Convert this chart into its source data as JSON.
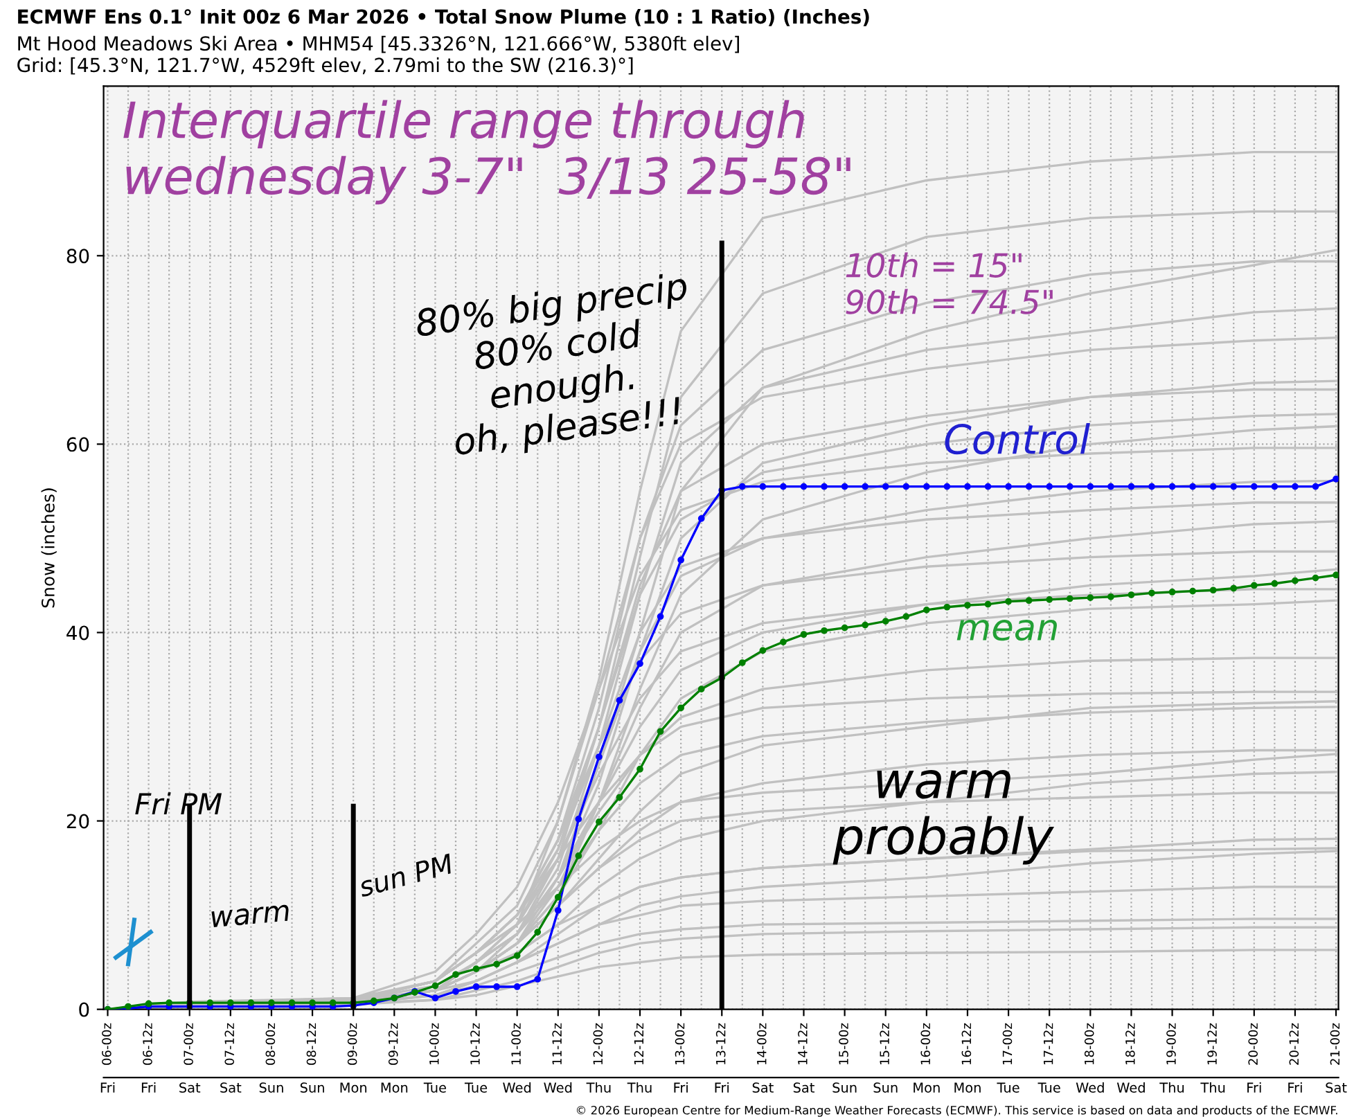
{
  "chart_data": {
    "type": "line",
    "title": "ECMWF Ens 0.1° Init 00z 6 Mar 2026 • Total Snow Plume (10 : 1 Ratio) (Inches)",
    "subtitle": "Mt Hood Meadows Ski Area • MHM54 [45.3326°N, 121.666°W, 5380ft elev]\nGrid: [45.3°N, 121.7°W, 4529ft elev, 2.79mi to the SW (216.3)°]",
    "ylabel": "Snow (inches)",
    "categories": [
      "06-00z",
      null,
      "06-12z",
      null,
      "07-00z",
      null,
      "07-12z",
      null,
      "08-00z",
      null,
      "08-12z",
      null,
      "09-00z",
      null,
      "09-12z",
      null,
      "10-00z",
      null,
      "10-12z",
      null,
      "11-00z",
      null,
      "11-12z",
      null,
      "12-00z",
      null,
      "12-12z",
      null,
      "13-00z",
      null,
      "13-12z",
      null,
      "14-00z",
      null,
      "14-12z",
      null,
      "15-00z",
      null,
      "15-12z",
      null,
      "16-00z",
      null,
      "16-12z",
      null,
      "17-00z",
      null,
      "17-12z",
      null,
      "18-00z",
      null,
      "18-12z",
      null,
      "19-00z",
      null,
      "19-12z",
      null,
      "20-00z",
      null,
      "20-12z",
      null,
      "21-00z"
    ],
    "ylim": [
      0,
      98
    ],
    "yticks": [
      0,
      20,
      40,
      60,
      80
    ],
    "grid": true,
    "marker": "circle",
    "line_style": "solid",
    "ref_lines": [
      {
        "axis": "x",
        "value": "07-00z",
        "color": "#000000"
      },
      {
        "axis": "x",
        "value": "09-00z",
        "color": "#000000"
      },
      {
        "axis": "x",
        "value": "13-12z",
        "color": "#000000"
      }
    ],
    "annotations": [
      "Interquartile range through\nwednesday 3-7\"  3/13 25-58\"",
      "10th = 15\"\n90th = 74.5\"",
      "80% big precip\n80% cold\nenough.\noh, please!!!",
      "Control",
      "mean",
      "warm\nprobably",
      "Fri PM",
      "warm",
      "sun PM",
      "© 2026 European Centre for Medium-Range Weather Forecasts (ECMWF). This service is based on data and products of the ECMWF.",
      "Fri",
      "Fri",
      "Sat",
      "Sat",
      "Sun",
      "Sun",
      "Mon",
      "Mon",
      "Tue",
      "Tue",
      "Wed",
      "Wed",
      "Thu",
      "Thu",
      "Fri",
      "Fri",
      "Sat",
      "Sat",
      "Sun",
      "Sun",
      "Mon",
      "Mon",
      "Tue",
      "Tue",
      "Wed",
      "Wed",
      "Thu",
      "Thu",
      "Fri",
      "Fri",
      "Sat"
    ],
    "series": [
      {
        "color": "#c0c0c0",
        "marker": "none",
        "x": [
          "06-00z",
          "07-00z",
          "09-00z",
          "10-00z",
          "10-12z",
          "11-00z",
          "11-12z",
          "12-00z",
          "12-12z",
          "13-00z",
          "14-00z",
          "16-00z",
          "18-00z",
          "20-00z",
          "21-00z"
        ],
        "values": [
          0,
          0.8,
          1.2,
          3,
          6,
          9,
          20,
          35,
          55,
          72,
          84,
          88,
          90,
          91,
          91
        ]
      },
      {
        "color": "#c0c0c0",
        "marker": "none",
        "x": [
          "06-00z",
          "07-00z",
          "09-00z",
          "10-00z",
          "10-12z",
          "11-00z",
          "11-12z",
          "12-00z",
          "12-12z",
          "13-00z",
          "14-00z",
          "16-00z",
          "18-00z",
          "20-00z",
          "21-00z"
        ],
        "values": [
          0,
          0.6,
          1,
          2.5,
          5,
          8,
          16,
          30,
          48,
          65,
          76,
          82,
          84,
          84.7,
          84.7
        ]
      },
      {
        "color": "#c0c0c0",
        "marker": "none",
        "x": [
          "06-00z",
          "07-00z",
          "09-00z",
          "10-00z",
          "10-12z",
          "11-00z",
          "11-12z",
          "12-00z",
          "12-12z",
          "13-00z",
          "14-00z",
          "16-00z",
          "18-00z",
          "20-00z",
          "21-00z"
        ],
        "values": [
          0,
          0.5,
          0.8,
          2,
          4,
          7,
          14,
          26,
          40,
          55,
          66,
          72,
          76,
          79,
          80.6
        ]
      },
      {
        "color": "#c0c0c0",
        "marker": "none",
        "x": [
          "06-00z",
          "07-00z",
          "09-00z",
          "10-00z",
          "10-12z",
          "11-00z",
          "11-12z",
          "12-00z",
          "12-12z",
          "13-00z",
          "14-00z",
          "16-00z",
          "18-00z",
          "20-00z",
          "21-00z"
        ],
        "values": [
          0,
          0.7,
          1,
          3,
          6,
          10,
          18,
          32,
          50,
          62,
          70,
          75,
          78,
          79.4,
          79.4
        ]
      },
      {
        "color": "#c0c0c0",
        "marker": "none",
        "x": [
          "06-00z",
          "07-00z",
          "09-00z",
          "10-00z",
          "10-12z",
          "11-00z",
          "11-12z",
          "12-00z",
          "12-12z",
          "13-00z",
          "14-00z",
          "16-00z",
          "18-00z",
          "20-00z",
          "21-00z"
        ],
        "values": [
          0,
          0.5,
          0.9,
          2,
          5,
          8,
          15,
          28,
          44,
          58,
          66,
          70,
          72,
          74,
          74.4
        ]
      },
      {
        "color": "#c0c0c0",
        "marker": "none",
        "x": [
          "06-00z",
          "07-00z",
          "09-00z",
          "10-00z",
          "10-12z",
          "11-00z",
          "11-12z",
          "12-00z",
          "12-12z",
          "13-00z",
          "14-00z",
          "16-00z",
          "18-00z",
          "20-00z",
          "21-00z"
        ],
        "values": [
          0,
          0.6,
          1,
          3,
          7,
          11,
          20,
          34,
          50,
          60,
          65,
          68,
          70,
          71,
          71.3
        ]
      },
      {
        "color": "#c0c0c0",
        "marker": "none",
        "x": [
          "06-00z",
          "07-00z",
          "09-00z",
          "10-00z",
          "10-12z",
          "11-00z",
          "11-12z",
          "12-00z",
          "12-12z",
          "13-00z",
          "14-00z",
          "16-00z",
          "18-00z",
          "20-00z",
          "21-00z"
        ],
        "values": [
          0,
          0.5,
          0.8,
          2,
          4,
          8,
          14,
          24,
          38,
          50,
          58,
          62,
          65,
          66.5,
          66.7
        ]
      },
      {
        "color": "#c0c0c0",
        "marker": "none",
        "x": [
          "06-00z",
          "07-00z",
          "09-00z",
          "10-00z",
          "10-12z",
          "11-00z",
          "11-12z",
          "12-00z",
          "12-12z",
          "13-00z",
          "14-00z",
          "16-00z",
          "18-00z",
          "20-00z",
          "21-00z"
        ],
        "values": [
          0,
          0.4,
          0.7,
          2,
          5,
          9,
          17,
          30,
          45,
          55,
          60,
          63,
          65,
          65.8,
          65.8
        ]
      },
      {
        "color": "#c0c0c0",
        "marker": "none",
        "x": [
          "06-00z",
          "07-00z",
          "09-00z",
          "10-00z",
          "10-12z",
          "11-00z",
          "11-12z",
          "12-00z",
          "12-12z",
          "13-00z",
          "14-00z",
          "16-00z",
          "18-00z",
          "20-00z",
          "21-00z"
        ],
        "values": [
          0,
          0.6,
          1,
          3,
          6,
          10,
          18,
          30,
          44,
          52,
          57,
          60,
          62,
          63,
          63.2
        ]
      },
      {
        "color": "#c0c0c0",
        "marker": "none",
        "x": [
          "06-00z",
          "07-00z",
          "09-00z",
          "10-00z",
          "10-12z",
          "11-00z",
          "11-12z",
          "12-00z",
          "12-12z",
          "13-00z",
          "14-00z",
          "16-00z",
          "18-00z",
          "20-00z",
          "21-00z"
        ],
        "values": [
          0,
          0.5,
          0.9,
          2,
          4,
          7,
          12,
          22,
          34,
          44,
          52,
          57,
          60,
          61.5,
          61.9
        ]
      },
      {
        "color": "#c0c0c0",
        "marker": "none",
        "x": [
          "06-00z",
          "07-00z",
          "09-00z",
          "10-00z",
          "10-12z",
          "11-00z",
          "11-12z",
          "12-00z",
          "12-12z",
          "13-00z",
          "14-00z",
          "16-00z",
          "18-00z",
          "20-00z",
          "21-00z"
        ],
        "values": [
          0,
          0.7,
          1.2,
          4,
          8,
          13,
          22,
          34,
          46,
          53,
          56,
          58,
          59,
          59.6,
          59.6
        ]
      },
      {
        "color": "#c0c0c0",
        "marker": "none",
        "x": [
          "06-00z",
          "07-00z",
          "09-00z",
          "10-00z",
          "10-12z",
          "11-00z",
          "11-12z",
          "12-00z",
          "12-12z",
          "13-00z",
          "14-00z",
          "16-00z",
          "18-00z",
          "20-00z",
          "21-00z"
        ],
        "values": [
          0,
          0.5,
          0.8,
          2,
          5,
          9,
          16,
          26,
          38,
          46,
          50,
          53,
          55,
          56,
          56.1
        ]
      },
      {
        "color": "#c0c0c0",
        "marker": "none",
        "x": [
          "06-00z",
          "07-00z",
          "09-00z",
          "10-00z",
          "10-12z",
          "11-00z",
          "11-12z",
          "12-00z",
          "12-12z",
          "13-00z",
          "14-00z",
          "16-00z",
          "18-00z",
          "20-00z",
          "21-00z"
        ],
        "values": [
          0,
          0.6,
          1,
          3,
          6,
          10,
          17,
          28,
          40,
          47,
          50,
          52,
          53,
          53.8,
          53.8
        ]
      },
      {
        "color": "#c0c0c0",
        "marker": "none",
        "x": [
          "06-00z",
          "07-00z",
          "09-00z",
          "10-00z",
          "10-12z",
          "11-00z",
          "11-12z",
          "12-00z",
          "12-12z",
          "13-00z",
          "14-00z",
          "16-00z",
          "18-00z",
          "20-00z",
          "21-00z"
        ],
        "values": [
          0,
          0.4,
          0.7,
          2,
          4,
          7,
          13,
          22,
          32,
          40,
          45,
          48,
          50,
          51.5,
          51.8
        ]
      },
      {
        "color": "#c0c0c0",
        "marker": "none",
        "x": [
          "06-00z",
          "07-00z",
          "09-00z",
          "10-00z",
          "10-12z",
          "11-00z",
          "11-12z",
          "12-00z",
          "12-12z",
          "13-00z",
          "14-00z",
          "16-00z",
          "18-00z",
          "20-00z",
          "21-00z"
        ],
        "values": [
          0,
          0.5,
          0.9,
          3,
          6,
          10,
          18,
          28,
          37,
          42,
          45,
          47,
          48,
          48.6,
          48.6
        ]
      },
      {
        "color": "#c0c0c0",
        "marker": "none",
        "x": [
          "06-00z",
          "07-00z",
          "09-00z",
          "10-00z",
          "10-12z",
          "11-00z",
          "11-12z",
          "12-00z",
          "12-12z",
          "13-00z",
          "14-00z",
          "16-00z",
          "18-00z",
          "20-00z",
          "21-00z"
        ],
        "values": [
          0,
          0.6,
          1,
          2,
          5,
          8,
          14,
          22,
          30,
          36,
          40,
          43,
          45,
          46,
          46.7
        ]
      },
      {
        "color": "#c0c0c0",
        "marker": "none",
        "x": [
          "06-00z",
          "07-00z",
          "09-00z",
          "10-00z",
          "10-12z",
          "11-00z",
          "11-12z",
          "12-00z",
          "12-12z",
          "13-00z",
          "14-00z",
          "16-00z",
          "18-00z",
          "20-00z",
          "21-00z"
        ],
        "values": [
          0,
          0.5,
          0.8,
          2,
          5,
          9,
          16,
          25,
          33,
          38,
          41,
          43,
          44,
          44.6,
          44.6
        ]
      },
      {
        "color": "#c0c0c0",
        "marker": "none",
        "x": [
          "06-00z",
          "07-00z",
          "09-00z",
          "10-00z",
          "10-12z",
          "11-00z",
          "11-12z",
          "12-00z",
          "12-12z",
          "13-00z",
          "14-00z",
          "16-00z",
          "18-00z",
          "20-00z",
          "21-00z"
        ],
        "values": [
          0,
          0.4,
          0.7,
          2,
          4,
          7,
          12,
          19,
          27,
          33,
          38,
          41,
          42.5,
          43,
          43.4
        ]
      },
      {
        "color": "#c0c0c0",
        "marker": "none",
        "x": [
          "06-00z",
          "07-00z",
          "09-00z",
          "10-00z",
          "10-12z",
          "11-00z",
          "11-12z",
          "12-00z",
          "12-12z",
          "13-00z",
          "14-00z",
          "16-00z",
          "18-00z",
          "20-00z",
          "21-00z"
        ],
        "values": [
          0,
          0.5,
          0.9,
          2,
          5,
          8,
          14,
          21,
          27,
          31,
          34,
          36,
          37,
          37.3,
          37.3
        ]
      },
      {
        "color": "#c0c0c0",
        "marker": "none",
        "x": [
          "06-00z",
          "07-00z",
          "09-00z",
          "10-00z",
          "10-12z",
          "11-00z",
          "11-12z",
          "12-00z",
          "12-12z",
          "13-00z",
          "14-00z",
          "16-00z",
          "18-00z",
          "20-00z",
          "21-00z"
        ],
        "values": [
          0,
          0.6,
          1,
          3,
          6,
          10,
          16,
          22,
          27,
          30,
          32,
          33,
          33.5,
          33.7,
          33.7
        ]
      },
      {
        "color": "#c0c0c0",
        "marker": "none",
        "x": [
          "06-00z",
          "07-00z",
          "09-00z",
          "10-00z",
          "10-12z",
          "11-00z",
          "11-12z",
          "12-00z",
          "12-12z",
          "13-00z",
          "14-00z",
          "16-00z",
          "18-00z",
          "20-00z",
          "21-00z"
        ],
        "values": [
          0,
          0.4,
          0.8,
          2,
          4,
          7,
          11,
          16,
          21,
          25,
          28,
          30,
          32,
          32.5,
          32.7
        ]
      },
      {
        "color": "#c0c0c0",
        "marker": "none",
        "x": [
          "06-00z",
          "07-00z",
          "09-00z",
          "10-00z",
          "10-12z",
          "11-00z",
          "11-12z",
          "12-00z",
          "12-12z",
          "13-00z",
          "14-00z",
          "16-00z",
          "18-00z",
          "20-00z",
          "21-00z"
        ],
        "values": [
          0,
          0.5,
          0.9,
          2,
          5,
          8,
          13,
          19,
          24,
          27,
          29,
          30.5,
          31.5,
          32,
          32.1
        ]
      },
      {
        "color": "#c0c0c0",
        "marker": "none",
        "x": [
          "06-00z",
          "07-00z",
          "09-00z",
          "10-00z",
          "10-12z",
          "11-00z",
          "11-12z",
          "12-00z",
          "12-12z",
          "13-00z",
          "14-00z",
          "16-00z",
          "18-00z",
          "20-00z",
          "21-00z"
        ],
        "values": [
          0,
          0.5,
          0.8,
          2,
          4,
          7,
          11,
          15,
          19,
          22,
          24,
          26,
          27,
          27.5,
          27.5
        ]
      },
      {
        "color": "#c0c0c0",
        "marker": "none",
        "x": [
          "06-00z",
          "07-00z",
          "09-00z",
          "10-00z",
          "10-12z",
          "11-00z",
          "11-12z",
          "12-00z",
          "12-12z",
          "13-00z",
          "14-00z",
          "16-00z",
          "18-00z",
          "20-00z",
          "21-00z"
        ],
        "values": [
          0,
          0.6,
          1,
          3,
          6,
          9,
          13,
          17,
          20,
          22,
          23,
          24,
          25,
          26.5,
          27.1
        ]
      },
      {
        "color": "#c0c0c0",
        "marker": "none",
        "x": [
          "06-00z",
          "07-00z",
          "09-00z",
          "10-00z",
          "10-12z",
          "11-00z",
          "11-12z",
          "12-00z",
          "12-12z",
          "13-00z",
          "14-00z",
          "16-00z",
          "18-00z",
          "20-00z",
          "21-00z"
        ],
        "values": [
          0,
          0.4,
          0.7,
          2,
          4,
          6,
          9,
          13,
          16,
          18,
          20,
          22,
          24,
          25,
          25.2
        ]
      },
      {
        "color": "#c0c0c0",
        "marker": "none",
        "x": [
          "06-00z",
          "07-00z",
          "09-00z",
          "10-00z",
          "10-12z",
          "11-00z",
          "11-12z",
          "12-00z",
          "12-12z",
          "13-00z",
          "14-00z",
          "16-00z",
          "18-00z",
          "20-00z",
          "21-00z"
        ],
        "values": [
          0,
          0.5,
          0.9,
          2,
          4,
          7,
          11,
          15,
          18,
          20,
          21,
          22,
          22.5,
          23,
          23
        ]
      },
      {
        "color": "#c0c0c0",
        "marker": "none",
        "x": [
          "06-00z",
          "07-00z",
          "09-00z",
          "10-00z",
          "10-12z",
          "11-00z",
          "11-12z",
          "12-00z",
          "12-12z",
          "13-00z",
          "14-00z",
          "16-00z",
          "18-00z",
          "20-00z",
          "21-00z"
        ],
        "values": [
          0,
          0.4,
          0.7,
          1.5,
          3,
          5,
          8,
          11,
          13,
          14,
          15,
          16,
          17,
          18,
          18.1
        ]
      },
      {
        "color": "#c0c0c0",
        "marker": "none",
        "x": [
          "06-00z",
          "07-00z",
          "09-00z",
          "10-00z",
          "10-12z",
          "11-00z",
          "11-12z",
          "12-00z",
          "12-12z",
          "13-00z",
          "14-00z",
          "16-00z",
          "18-00z",
          "20-00z",
          "21-00z"
        ],
        "values": [
          0,
          0.5,
          0.8,
          2,
          4,
          6,
          9,
          11,
          13,
          14,
          15,
          16,
          16.8,
          17,
          17.1
        ]
      },
      {
        "color": "#c0c0c0",
        "marker": "none",
        "x": [
          "06-00z",
          "07-00z",
          "09-00z",
          "10-00z",
          "10-12z",
          "11-00z",
          "11-12z",
          "12-00z",
          "12-12z",
          "13-00z",
          "14-00z",
          "16-00z",
          "18-00z",
          "20-00z",
          "21-00z"
        ],
        "values": [
          0,
          0.4,
          0.6,
          1.5,
          3,
          5,
          7,
          9,
          11,
          12,
          13,
          14,
          15.5,
          16.5,
          16.8
        ]
      },
      {
        "color": "#c0c0c0",
        "marker": "none",
        "x": [
          "06-00z",
          "07-00z",
          "09-00z",
          "10-00z",
          "10-12z",
          "11-00z",
          "11-12z",
          "12-00z",
          "12-12z",
          "13-00z",
          "14-00z",
          "16-00z",
          "18-00z",
          "20-00z",
          "21-00z"
        ],
        "values": [
          0,
          0.5,
          0.8,
          2,
          3,
          5,
          7,
          9,
          10,
          11,
          11.5,
          12,
          12.5,
          13,
          13
        ]
      },
      {
        "color": "#c0c0c0",
        "marker": "none",
        "x": [
          "06-00z",
          "07-00z",
          "09-00z",
          "10-00z",
          "10-12z",
          "11-00z",
          "11-12z",
          "12-00z",
          "12-12z",
          "13-00z",
          "14-00z",
          "16-00z",
          "18-00z",
          "20-00z",
          "21-00z"
        ],
        "values": [
          0,
          0.4,
          0.6,
          1.5,
          2.5,
          4,
          5.5,
          7,
          8,
          8.5,
          9,
          9.2,
          9.4,
          9.6,
          9.6
        ]
      },
      {
        "color": "#c0c0c0",
        "marker": "none",
        "x": [
          "06-00z",
          "07-00z",
          "09-00z",
          "10-00z",
          "10-12z",
          "11-00z",
          "11-12z",
          "12-00z",
          "12-12z",
          "13-00z",
          "14-00z",
          "16-00z",
          "18-00z",
          "20-00z",
          "21-00z"
        ],
        "values": [
          0,
          0.4,
          0.6,
          1,
          2,
          3,
          4.5,
          6,
          7,
          7.5,
          8,
          8.3,
          8.5,
          8.7,
          8.7
        ]
      },
      {
        "color": "#c0c0c0",
        "marker": "none",
        "x": [
          "06-00z",
          "07-00z",
          "09-00z",
          "10-00z",
          "10-12z",
          "11-00z",
          "11-12z",
          "12-00z",
          "12-12z",
          "13-00z",
          "14-00z",
          "16-00z",
          "18-00z",
          "20-00z",
          "21-00z"
        ],
        "values": [
          0,
          0.3,
          0.5,
          1,
          1.5,
          2.5,
          3.5,
          4.5,
          5,
          5.5,
          5.8,
          6,
          6.1,
          6.3,
          6.3
        ]
      },
      {
        "color": "#0000ff",
        "values": [
          0,
          0.1,
          0.3,
          0.3,
          0.3,
          0.3,
          0.3,
          0.3,
          0.3,
          0.3,
          0.3,
          0.3,
          0.4,
          0.7,
          1.2,
          1.9,
          1.2,
          1.9,
          2.4,
          2.4,
          2.4,
          3.2,
          10.5,
          20.2,
          26.8,
          32.8,
          36.7,
          41.7,
          47.7,
          52.1,
          55.1,
          55.5,
          55.5,
          55.5,
          55.5,
          55.5,
          55.5,
          55.5,
          55.5,
          55.5,
          55.5,
          55.5,
          55.5,
          55.5,
          55.5,
          55.5,
          55.5,
          55.5,
          55.5,
          55.5,
          55.5,
          55.5,
          55.5,
          55.5,
          55.5,
          55.5,
          55.5,
          55.5,
          55.5,
          55.5,
          56.3
        ]
      },
      {
        "color": "#008000",
        "values": [
          0,
          0.3,
          0.6,
          0.7,
          0.7,
          0.7,
          0.7,
          0.7,
          0.7,
          0.7,
          0.7,
          0.7,
          0.7,
          0.9,
          1.2,
          1.8,
          2.5,
          3.7,
          4.3,
          4.8,
          5.7,
          8.2,
          11.9,
          16.3,
          19.9,
          22.5,
          25.5,
          29.5,
          32,
          34,
          35.2,
          36.8,
          38.1,
          39,
          39.8,
          40.2,
          40.5,
          40.8,
          41.2,
          41.7,
          42.4,
          42.7,
          42.9,
          43,
          43.3,
          43.4,
          43.5,
          43.6,
          43.7,
          43.8,
          44,
          44.2,
          44.3,
          44.4,
          44.5,
          44.7,
          45,
          45.2,
          45.5,
          45.8,
          46.1
        ]
      }
    ]
  }
}
